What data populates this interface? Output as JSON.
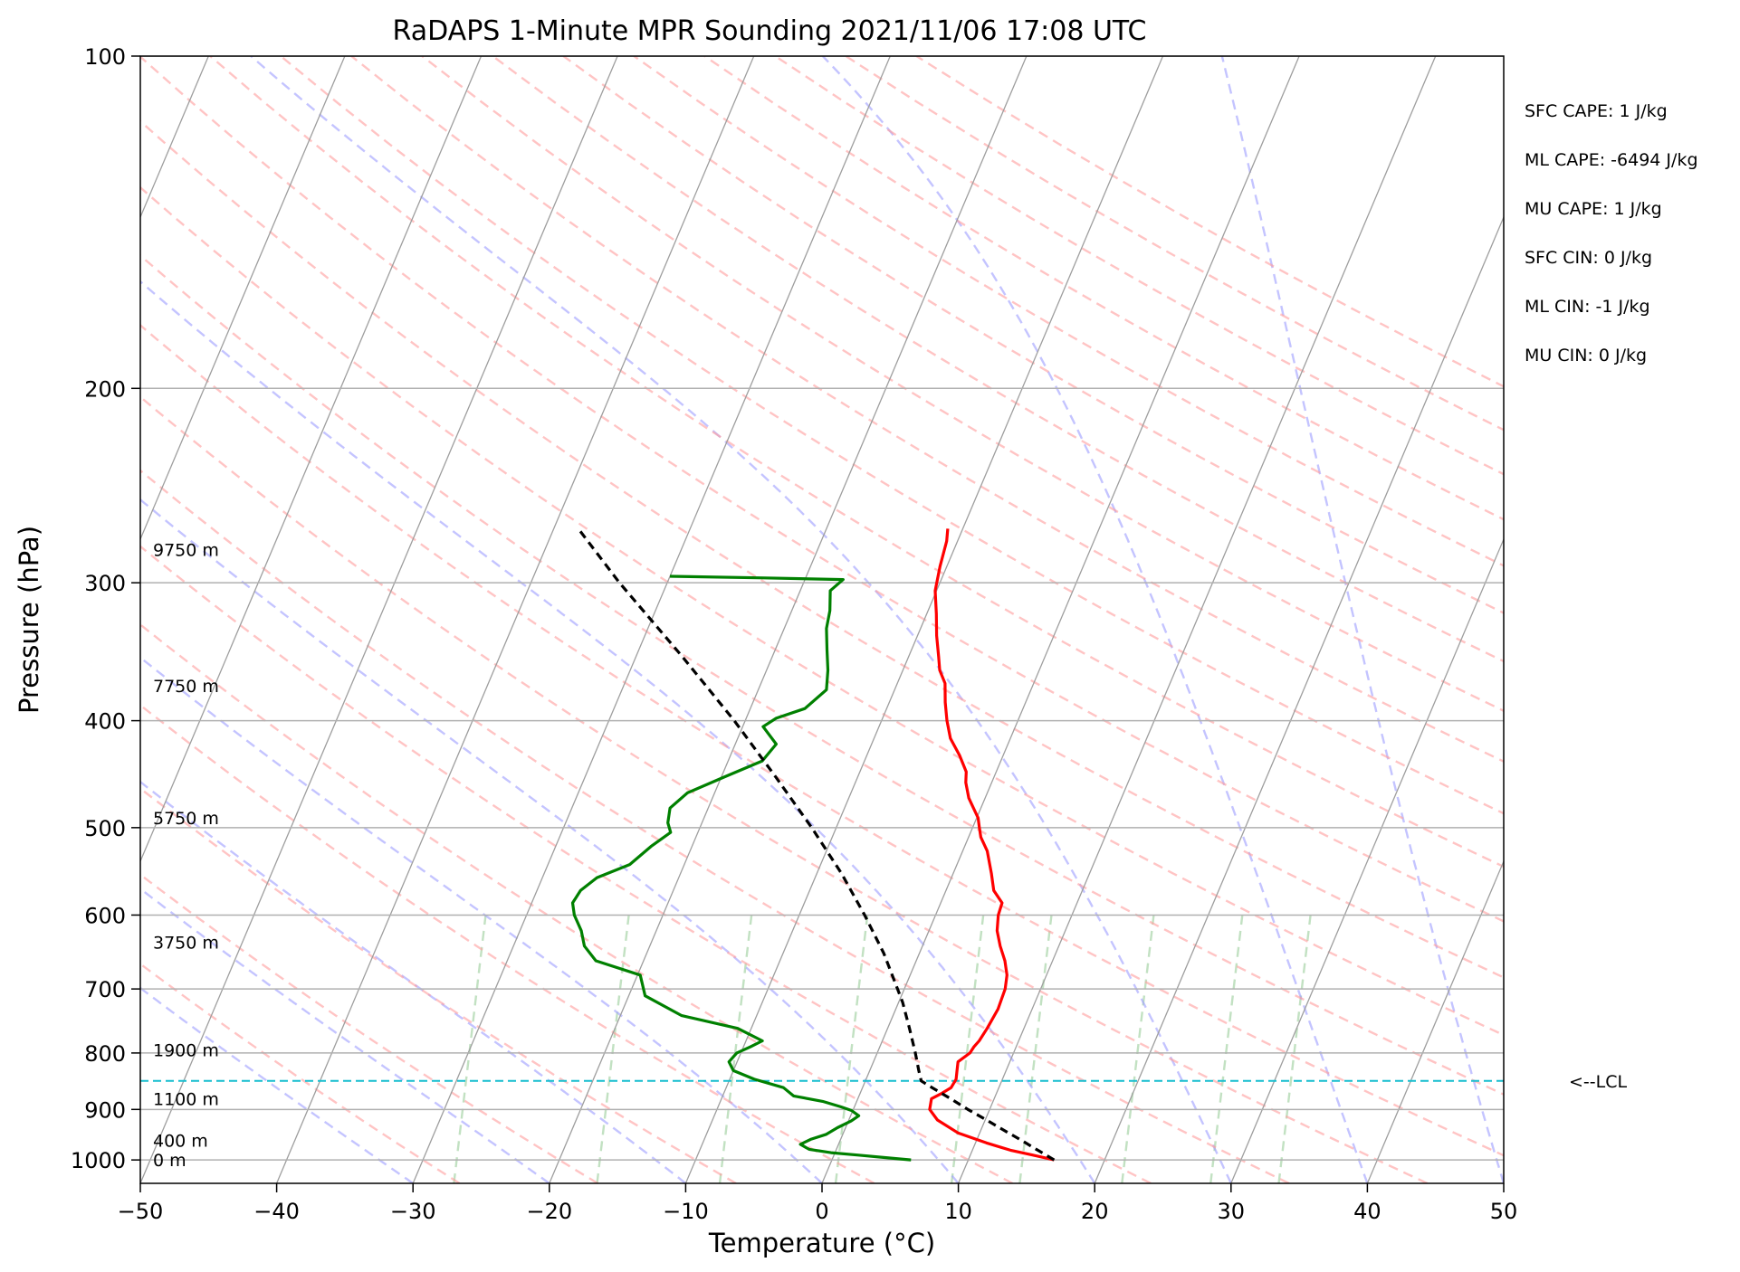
{
  "chart_data": {
    "type": "line",
    "title": "RaDAPS 1-Minute MPR Sounding 2021/11/06 17:08 UTC",
    "xlabel": "Temperature (°C)",
    "ylabel": "Pressure (hPa)",
    "xlim": [
      -50,
      50
    ],
    "ylim": [
      1050,
      100
    ],
    "y_scale": "log",
    "x_ticks": [
      -50,
      -40,
      -30,
      -20,
      -10,
      0,
      10,
      20,
      30,
      40,
      50
    ],
    "x_tick_labels": [
      "−50",
      "−40",
      "−30",
      "−20",
      "−10",
      "0",
      "10",
      "20",
      "30",
      "40",
      "50"
    ],
    "y_ticks": [
      100,
      200,
      300,
      400,
      500,
      600,
      700,
      800,
      900,
      1000
    ],
    "y_tick_labels": [
      "100",
      "200",
      "300",
      "400",
      "500",
      "600",
      "700",
      "800",
      "900",
      "1000"
    ],
    "grid": true,
    "skew": 35,
    "background_lines": {
      "isotherms": [
        -120,
        -110,
        -100,
        -90,
        -80,
        -70,
        -60,
        -50,
        -40,
        -30,
        -20,
        -10,
        0,
        10,
        20,
        30,
        40,
        50
      ],
      "dry_adiabats_theta_c": [
        -30,
        -20,
        -10,
        0,
        10,
        20,
        30,
        40,
        50,
        60,
        70,
        80,
        90,
        100,
        110,
        120,
        130,
        140,
        150,
        160,
        170,
        180,
        190,
        200
      ],
      "moist_adiabats_start_t_c": [
        -30,
        -20,
        -10,
        0,
        10,
        20,
        30,
        40,
        50
      ],
      "mixing_ratio_lines_t_c_at_1000": [
        -27,
        -16.5,
        -7.5,
        1,
        9.5,
        14.5,
        22,
        28.5,
        33.5
      ]
    },
    "series": [
      {
        "key": "temperature",
        "color": "#ff0000",
        "points": [
          [
            1000,
            16.3
          ],
          [
            990,
            14.6
          ],
          [
            980,
            12.8
          ],
          [
            965,
            10.8
          ],
          [
            945,
            8.4
          ],
          [
            920,
            6.5
          ],
          [
            900,
            5.6
          ],
          [
            890,
            5.5
          ],
          [
            880,
            5.4
          ],
          [
            870,
            6.0
          ],
          [
            860,
            6.5
          ],
          [
            845,
            6.6
          ],
          [
            830,
            6.4
          ],
          [
            815,
            6.2
          ],
          [
            800,
            6.8
          ],
          [
            790,
            6.9
          ],
          [
            780,
            7.1
          ],
          [
            760,
            7.3
          ],
          [
            730,
            7.5
          ],
          [
            700,
            7.4
          ],
          [
            680,
            7.1
          ],
          [
            660,
            6.5
          ],
          [
            640,
            5.7
          ],
          [
            620,
            5.0
          ],
          [
            600,
            4.6
          ],
          [
            585,
            4.5
          ],
          [
            570,
            3.5
          ],
          [
            550,
            2.8
          ],
          [
            525,
            1.8
          ],
          [
            510,
            0.9
          ],
          [
            500,
            0.5
          ],
          [
            490,
            0.1
          ],
          [
            470,
            -1.2
          ],
          [
            455,
            -1.9
          ],
          [
            445,
            -2.2
          ],
          [
            430,
            -3.2
          ],
          [
            415,
            -4.4
          ],
          [
            400,
            -5.2
          ],
          [
            385,
            -5.9
          ],
          [
            370,
            -6.5
          ],
          [
            360,
            -7.3
          ],
          [
            350,
            -7.8
          ],
          [
            335,
            -8.6
          ],
          [
            320,
            -9.3
          ],
          [
            305,
            -10.1
          ],
          [
            290,
            -10.5
          ],
          [
            275,
            -10.8
          ],
          [
            268,
            -11.1
          ]
        ]
      },
      {
        "key": "dewpoint",
        "color": "#008000",
        "points": [
          [
            1000,
            5.8
          ],
          [
            995,
            3.8
          ],
          [
            990,
            1.8
          ],
          [
            985,
            -0.3
          ],
          [
            978,
            -2.0
          ],
          [
            968,
            -2.8
          ],
          [
            958,
            -2.2
          ],
          [
            948,
            -1.2
          ],
          [
            935,
            -0.6
          ],
          [
            922,
            0.2
          ],
          [
            912,
            0.6
          ],
          [
            902,
            -0.1
          ],
          [
            895,
            -1.0
          ],
          [
            885,
            -2.5
          ],
          [
            875,
            -4.8
          ],
          [
            860,
            -5.8
          ],
          [
            845,
            -8.2
          ],
          [
            830,
            -10.0
          ],
          [
            815,
            -10.6
          ],
          [
            800,
            -10.3
          ],
          [
            790,
            -9.5
          ],
          [
            780,
            -8.8
          ],
          [
            760,
            -11.0
          ],
          [
            740,
            -15.5
          ],
          [
            710,
            -18.8
          ],
          [
            680,
            -19.8
          ],
          [
            660,
            -23.5
          ],
          [
            640,
            -24.8
          ],
          [
            620,
            -25.5
          ],
          [
            600,
            -26.5
          ],
          [
            585,
            -27.0
          ],
          [
            570,
            -26.8
          ],
          [
            555,
            -26.0
          ],
          [
            540,
            -24.0
          ],
          [
            520,
            -23.0
          ],
          [
            505,
            -22.0
          ],
          [
            495,
            -22.5
          ],
          [
            480,
            -22.8
          ],
          [
            465,
            -22.0
          ],
          [
            450,
            -19.8
          ],
          [
            435,
            -17.5
          ],
          [
            420,
            -17.0
          ],
          [
            405,
            -18.5
          ],
          [
            398,
            -17.8
          ],
          [
            390,
            -16.0
          ],
          [
            375,
            -15.0
          ],
          [
            360,
            -15.5
          ],
          [
            345,
            -16.2
          ],
          [
            330,
            -16.9
          ],
          [
            318,
            -17.2
          ],
          [
            305,
            -17.8
          ],
          [
            298,
            -17.2
          ],
          [
            297,
            -23.0
          ],
          [
            296,
            -30.0
          ]
        ]
      },
      {
        "key": "parcel",
        "color": "#000000",
        "dashed": true,
        "points": [
          [
            1000,
            16.3
          ],
          [
            980,
            14.8
          ],
          [
            960,
            13.3
          ],
          [
            940,
            11.7
          ],
          [
            920,
            10.1
          ],
          [
            900,
            8.4
          ],
          [
            880,
            6.8
          ],
          [
            860,
            5.1
          ],
          [
            848,
            4.1
          ],
          [
            830,
            3.6
          ],
          [
            800,
            2.8
          ],
          [
            760,
            1.6
          ],
          [
            720,
            0.3
          ],
          [
            700,
            -0.5
          ],
          [
            650,
            -2.6
          ],
          [
            600,
            -5.2
          ],
          [
            550,
            -8.2
          ],
          [
            500,
            -11.8
          ],
          [
            450,
            -16.0
          ],
          [
            400,
            -20.8
          ],
          [
            350,
            -26.6
          ],
          [
            300,
            -33.5
          ],
          [
            268,
            -38.2
          ]
        ]
      }
    ],
    "lcl_pressure": 848,
    "lcl_label": "<--LCL",
    "height_labels": [
      {
        "p": 1000,
        "text": "0 m"
      },
      {
        "p": 960,
        "text": "400 m"
      },
      {
        "p": 880,
        "text": "1100 m"
      },
      {
        "p": 795,
        "text": "1900 m"
      },
      {
        "p": 635,
        "text": "3750 m"
      },
      {
        "p": 490,
        "text": "5750 m"
      },
      {
        "p": 372,
        "text": "7750 m"
      },
      {
        "p": 280,
        "text": "9750 m"
      }
    ],
    "parameters": [
      "SFC CAPE: 1 J/kg",
      "ML CAPE: -6494 J/kg",
      "MU CAPE: 1 J/kg",
      "SFC CIN: 0 J/kg",
      "ML CIN: -1 J/kg",
      "MU CIN: 0 J/kg"
    ]
  }
}
